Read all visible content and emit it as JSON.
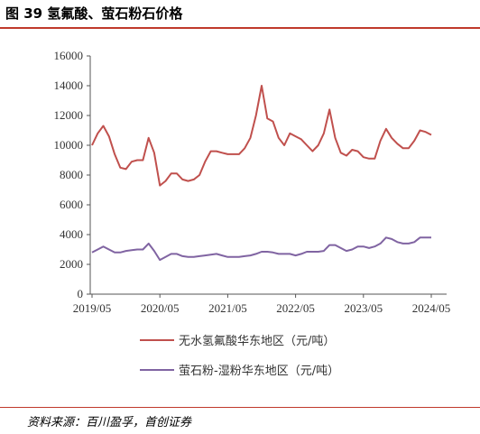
{
  "header": {
    "title": "图 39 氢氟酸、萤石粉石价格"
  },
  "footer": {
    "source": "资料来源：百川盈孚，首创证券"
  },
  "colors": {
    "accent_rule": "#c0392b",
    "series_hf": "#c0504d",
    "series_fluorite": "#8064a2",
    "axis": "#555555"
  },
  "chart_data": {
    "type": "line",
    "xlabel": "",
    "ylabel": "",
    "ylim": [
      0,
      16000
    ],
    "yticks": [
      0,
      2000,
      4000,
      6000,
      8000,
      10000,
      12000,
      14000,
      16000
    ],
    "xtick_labels": [
      "2019/05",
      "2020/05",
      "2021/05",
      "2022/05",
      "2023/05",
      "2024/05"
    ],
    "x_range": [
      "2019/05",
      "2024/05"
    ],
    "grid": false,
    "legend": "bottom",
    "series": [
      {
        "name": "无水氢氟酸华东地区（元/吨）",
        "color": "#c0504d",
        "points": [
          [
            "2019-05",
            10000
          ],
          [
            "2019-06",
            10800
          ],
          [
            "2019-07",
            11300
          ],
          [
            "2019-08",
            10600
          ],
          [
            "2019-09",
            9400
          ],
          [
            "2019-10",
            8500
          ],
          [
            "2019-11",
            8400
          ],
          [
            "2019-12",
            8900
          ],
          [
            "2020-01",
            9000
          ],
          [
            "2020-02",
            9000
          ],
          [
            "2020-03",
            10500
          ],
          [
            "2020-04",
            9500
          ],
          [
            "2020-05",
            7300
          ],
          [
            "2020-06",
            7600
          ],
          [
            "2020-07",
            8100
          ],
          [
            "2020-08",
            8100
          ],
          [
            "2020-09",
            7700
          ],
          [
            "2020-10",
            7600
          ],
          [
            "2020-11",
            7700
          ],
          [
            "2020-12",
            8000
          ],
          [
            "2021-01",
            8900
          ],
          [
            "2021-02",
            9600
          ],
          [
            "2021-03",
            9600
          ],
          [
            "2021-04",
            9500
          ],
          [
            "2021-05",
            9400
          ],
          [
            "2021-06",
            9400
          ],
          [
            "2021-07",
            9400
          ],
          [
            "2021-08",
            9800
          ],
          [
            "2021-09",
            10500
          ],
          [
            "2021-10",
            12000
          ],
          [
            "2021-11",
            14000
          ],
          [
            "2021-12",
            11800
          ],
          [
            "2022-01",
            11600
          ],
          [
            "2022-02",
            10500
          ],
          [
            "2022-03",
            10000
          ],
          [
            "2022-04",
            10800
          ],
          [
            "2022-05",
            10600
          ],
          [
            "2022-06",
            10400
          ],
          [
            "2022-07",
            10000
          ],
          [
            "2022-08",
            9600
          ],
          [
            "2022-09",
            10000
          ],
          [
            "2022-10",
            10800
          ],
          [
            "2022-11",
            12400
          ],
          [
            "2022-12",
            10500
          ],
          [
            "2023-01",
            9500
          ],
          [
            "2023-02",
            9300
          ],
          [
            "2023-03",
            9700
          ],
          [
            "2023-04",
            9600
          ],
          [
            "2023-05",
            9200
          ],
          [
            "2023-06",
            9100
          ],
          [
            "2023-07",
            9100
          ],
          [
            "2023-08",
            10300
          ],
          [
            "2023-09",
            11100
          ],
          [
            "2023-10",
            10500
          ],
          [
            "2023-11",
            10100
          ],
          [
            "2023-12",
            9800
          ],
          [
            "2024-01",
            9800
          ],
          [
            "2024-02",
            10300
          ],
          [
            "2024-03",
            11000
          ],
          [
            "2024-04",
            10900
          ],
          [
            "2024-05",
            10700
          ]
        ]
      },
      {
        "name": "萤石粉-湿粉华东地区（元/吨）",
        "color": "#8064a2",
        "points": [
          [
            "2019-05",
            2800
          ],
          [
            "2019-06",
            3000
          ],
          [
            "2019-07",
            3200
          ],
          [
            "2019-08",
            3000
          ],
          [
            "2019-09",
            2800
          ],
          [
            "2019-10",
            2800
          ],
          [
            "2019-11",
            2900
          ],
          [
            "2019-12",
            2950
          ],
          [
            "2020-01",
            3000
          ],
          [
            "2020-02",
            3000
          ],
          [
            "2020-03",
            3400
          ],
          [
            "2020-04",
            2900
          ],
          [
            "2020-05",
            2300
          ],
          [
            "2020-06",
            2500
          ],
          [
            "2020-07",
            2700
          ],
          [
            "2020-08",
            2700
          ],
          [
            "2020-09",
            2550
          ],
          [
            "2020-10",
            2500
          ],
          [
            "2020-11",
            2500
          ],
          [
            "2020-12",
            2550
          ],
          [
            "2021-01",
            2600
          ],
          [
            "2021-02",
            2650
          ],
          [
            "2021-03",
            2700
          ],
          [
            "2021-04",
            2600
          ],
          [
            "2021-05",
            2500
          ],
          [
            "2021-06",
            2500
          ],
          [
            "2021-07",
            2500
          ],
          [
            "2021-08",
            2550
          ],
          [
            "2021-09",
            2600
          ],
          [
            "2021-10",
            2700
          ],
          [
            "2021-11",
            2850
          ],
          [
            "2021-12",
            2850
          ],
          [
            "2022-01",
            2800
          ],
          [
            "2022-02",
            2700
          ],
          [
            "2022-03",
            2700
          ],
          [
            "2022-04",
            2700
          ],
          [
            "2022-05",
            2600
          ],
          [
            "2022-06",
            2700
          ],
          [
            "2022-07",
            2850
          ],
          [
            "2022-08",
            2850
          ],
          [
            "2022-09",
            2850
          ],
          [
            "2022-10",
            2900
          ],
          [
            "2022-11",
            3300
          ],
          [
            "2022-12",
            3300
          ],
          [
            "2023-01",
            3100
          ],
          [
            "2023-02",
            2900
          ],
          [
            "2023-03",
            3000
          ],
          [
            "2023-04",
            3200
          ],
          [
            "2023-05",
            3200
          ],
          [
            "2023-06",
            3100
          ],
          [
            "2023-07",
            3200
          ],
          [
            "2023-08",
            3400
          ],
          [
            "2023-09",
            3800
          ],
          [
            "2023-10",
            3700
          ],
          [
            "2023-11",
            3500
          ],
          [
            "2023-12",
            3400
          ],
          [
            "2024-01",
            3400
          ],
          [
            "2024-02",
            3500
          ],
          [
            "2024-03",
            3800
          ],
          [
            "2024-04",
            3800
          ],
          [
            "2024-05",
            3800
          ]
        ]
      }
    ]
  }
}
